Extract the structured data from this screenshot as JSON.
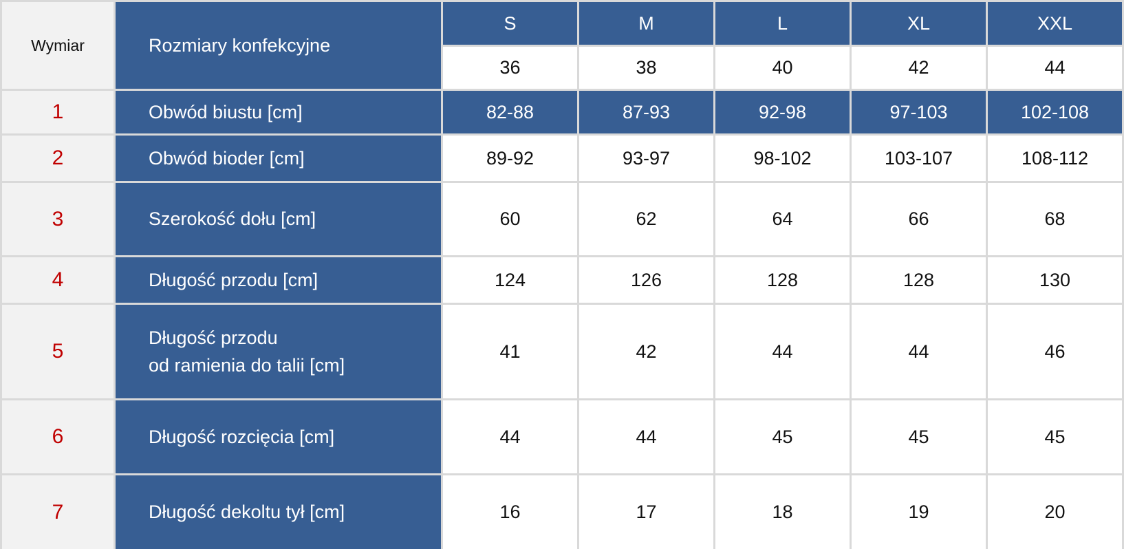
{
  "table": {
    "header": {
      "dimension": "Wymiar",
      "label": "Rozmiary konfekcyjne",
      "sizes": [
        "S",
        "M",
        "L",
        "XL",
        "XXL"
      ],
      "eu_sizes": [
        36,
        38,
        40,
        42,
        44
      ]
    },
    "rows": [
      {
        "number": 1,
        "label": [
          "Obwód biustu [cm]"
        ],
        "values": [
          "82-88",
          "87-93",
          "92-98",
          "97-103",
          "102-108"
        ]
      },
      {
        "number": 2,
        "label": [
          "Obwód bioder [cm]"
        ],
        "values": [
          "89-92",
          "93-97",
          "98-102",
          "103-107",
          "108-112"
        ]
      },
      {
        "number": 3,
        "label": [
          "Szerokość dołu [cm]"
        ],
        "values": [
          60,
          62,
          64,
          66,
          68
        ]
      },
      {
        "number": 4,
        "label": [
          "Długość przodu [cm]"
        ],
        "values": [
          124,
          126,
          128,
          128,
          130
        ]
      },
      {
        "number": 5,
        "label": [
          "Długość przodu",
          "od ramienia do talii [cm]"
        ],
        "values": [
          41,
          42,
          44,
          44,
          46
        ]
      },
      {
        "number": 6,
        "label": [
          "Długość rozcięcia [cm]"
        ],
        "values": [
          44,
          44,
          45,
          45,
          45
        ]
      },
      {
        "number": 7,
        "label": [
          "Długość dekoltu tył [cm]"
        ],
        "values": [
          16,
          17,
          18,
          19,
          20
        ]
      }
    ]
  }
}
